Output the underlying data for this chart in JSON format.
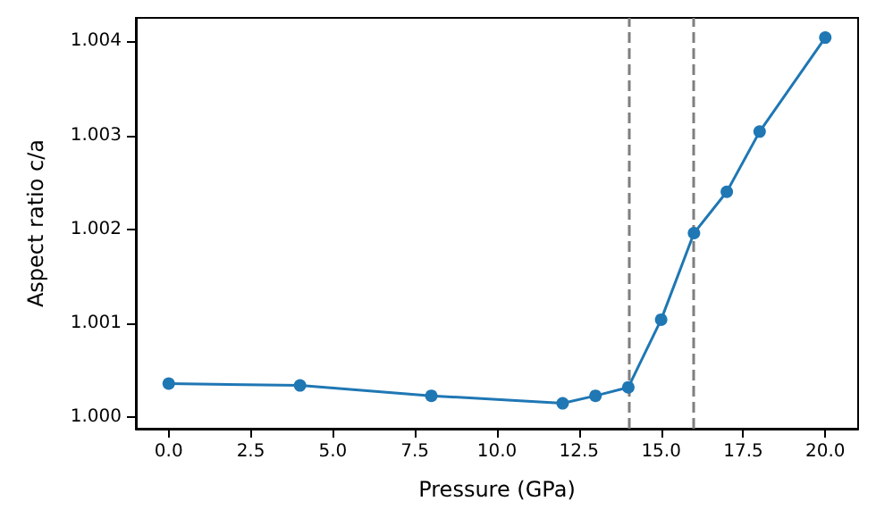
{
  "chart_data": {
    "type": "line",
    "xlabel": "Pressure (GPa)",
    "ylabel": "Aspect ratio c/a",
    "x": [
      0,
      4,
      8,
      12,
      13,
      14,
      15,
      16,
      17,
      18,
      20
    ],
    "series": [
      {
        "color": "#1f77b4",
        "values": [
          1.00036,
          1.00034,
          1.00023,
          1.00015,
          1.00023,
          1.00032,
          1.00104,
          1.00196,
          1.0024,
          1.00304,
          1.00404
        ]
      }
    ],
    "marker": "circle",
    "line_style": "solid",
    "grid": false,
    "xlim": [
      -1,
      21
    ],
    "ylim": [
      0.99988,
      1.00425
    ],
    "xticks": [
      {
        "value": 0,
        "label": "0.0"
      },
      {
        "value": 2.5,
        "label": "2.5"
      },
      {
        "value": 5,
        "label": "5.0"
      },
      {
        "value": 7.5,
        "label": "7.5"
      },
      {
        "value": 10,
        "label": "10.0"
      },
      {
        "value": 12.5,
        "label": "12.5"
      },
      {
        "value": 15,
        "label": "15.0"
      },
      {
        "value": 17.5,
        "label": "17.5"
      },
      {
        "value": 20,
        "label": "20.0"
      }
    ],
    "yticks": [
      {
        "value": 1,
        "label": "1.000"
      },
      {
        "value": 1.001,
        "label": "1.001"
      },
      {
        "value": 1.002,
        "label": "1.002"
      },
      {
        "value": 1.003,
        "label": "1.003"
      },
      {
        "value": 1.004,
        "label": "1.004"
      }
    ],
    "ref_lines": [
      {
        "axis": "x",
        "value": 14,
        "color": "#7f7f7f",
        "line_style": "dashed"
      },
      {
        "axis": "x",
        "value": 16,
        "color": "#7f7f7f",
        "line_style": "dashed"
      }
    ]
  }
}
